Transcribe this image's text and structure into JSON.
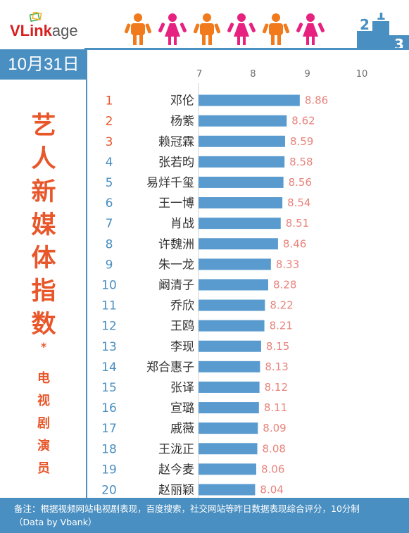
{
  "header": {
    "logo_v": "VLink",
    "logo_age": "age",
    "podium_numbers": [
      "2",
      "1",
      "3"
    ]
  },
  "date": "10月31日",
  "side_title": {
    "main": [
      "艺",
      "人",
      "新",
      "媒",
      "体",
      "指",
      "数"
    ],
    "star": "*",
    "sub": [
      "电",
      "视",
      "剧",
      "演",
      "员"
    ]
  },
  "colors": {
    "accent_blue": "#4a8fc1",
    "bar_blue": "#5a9bcf",
    "title_orange": "#e8562a",
    "value_pink": "#e8837b",
    "rank_red": "#e8562a",
    "rank_blue": "#4a8fc1",
    "person_orange": "#f07a1c",
    "person_pink": "#e6217f"
  },
  "chart_data": {
    "type": "bar",
    "orientation": "horizontal",
    "xlim": [
      7,
      10
    ],
    "xticks": [
      "7",
      "8",
      "9",
      "10"
    ],
    "ranks": [
      "1",
      "2",
      "3",
      "4",
      "5",
      "6",
      "7",
      "8",
      "9",
      "10",
      "11",
      "12",
      "13",
      "14",
      "15",
      "16",
      "17",
      "18",
      "19",
      "20"
    ],
    "categories": [
      "邓伦",
      "杨紫",
      "赖冠霖",
      "张若昀",
      "易烊千玺",
      "王一博",
      "肖战",
      "许魏洲",
      "朱一龙",
      "阚清子",
      "乔欣",
      "王鸥",
      "李现",
      "郑合惠子",
      "张译",
      "宣璐",
      "戚薇",
      "王泷正",
      "赵今麦",
      "赵丽颖"
    ],
    "values": [
      8.86,
      8.62,
      8.59,
      8.58,
      8.56,
      8.54,
      8.51,
      8.46,
      8.33,
      8.28,
      8.22,
      8.21,
      8.15,
      8.13,
      8.12,
      8.11,
      8.09,
      8.08,
      8.06,
      8.04
    ],
    "value_labels": [
      "8.86",
      "8.62",
      "8.59",
      "8.58",
      "8.56",
      "8.54",
      "8.51",
      "8.46",
      "8.33",
      "8.28",
      "8.22",
      "8.21",
      "8.15",
      "8.13",
      "8.12",
      "8.11",
      "8.09",
      "8.08",
      "8.06",
      "8.04"
    ]
  },
  "footer": {
    "note": "备注：根据视频网站电视剧表现，百度搜索，社交网站等昨日数据表现综合评分，10分制",
    "source": "（Data by Vbank）"
  }
}
